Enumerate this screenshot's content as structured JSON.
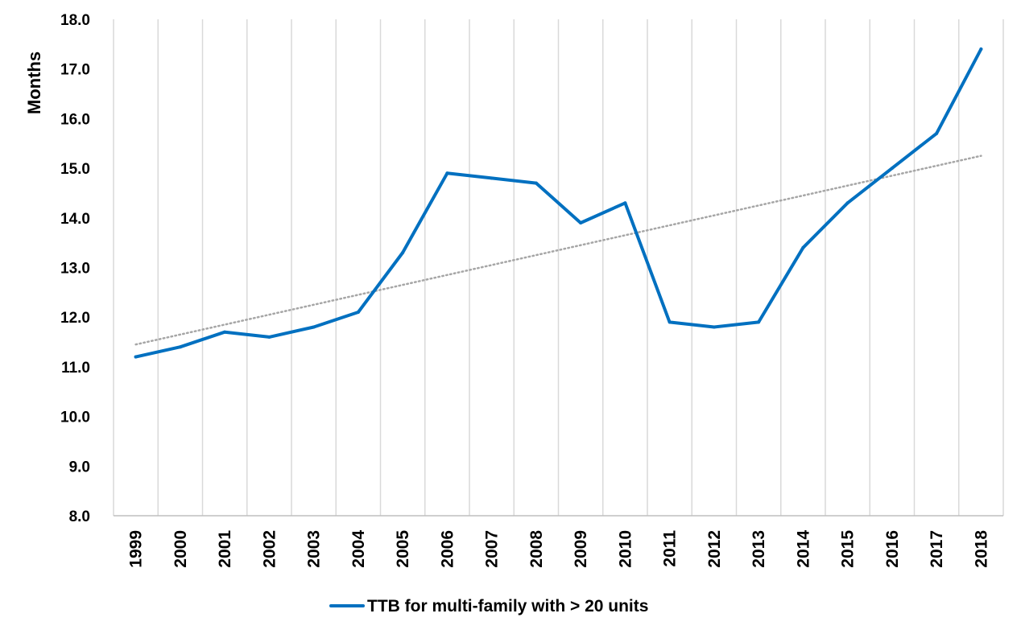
{
  "colors": {
    "series": "#0070C0",
    "trendline": "#A6A6A6",
    "gridline": "#D9D9D9",
    "axis": "#BFBFBF"
  },
  "chart_data": {
    "type": "line",
    "title": "",
    "xlabel": "",
    "ylabel": "Months",
    "ylim": [
      8.0,
      18.0
    ],
    "yticks": [
      "8.0",
      "9.0",
      "10.0",
      "11.0",
      "12.0",
      "13.0",
      "14.0",
      "15.0",
      "16.0",
      "17.0",
      "18.0"
    ],
    "grid": "vertical",
    "legend_position": "bottom",
    "categories": [
      "1999",
      "2000",
      "2001",
      "2002",
      "2003",
      "2004",
      "2005",
      "2006",
      "2007",
      "2008",
      "2009",
      "2010",
      "2011",
      "2012",
      "2013",
      "2014",
      "2015",
      "2016",
      "2017",
      "2018"
    ],
    "series": [
      {
        "name": "TTB for multi-family with > 20 units",
        "values": [
          11.2,
          11.4,
          11.7,
          11.6,
          11.8,
          12.1,
          13.3,
          14.9,
          14.8,
          14.7,
          13.9,
          14.3,
          11.9,
          11.8,
          11.9,
          13.4,
          14.3,
          15.0,
          15.7,
          17.4
        ]
      }
    ],
    "trendline": {
      "type": "linear",
      "style": "dotted",
      "start": 11.45,
      "end": 15.25
    }
  }
}
